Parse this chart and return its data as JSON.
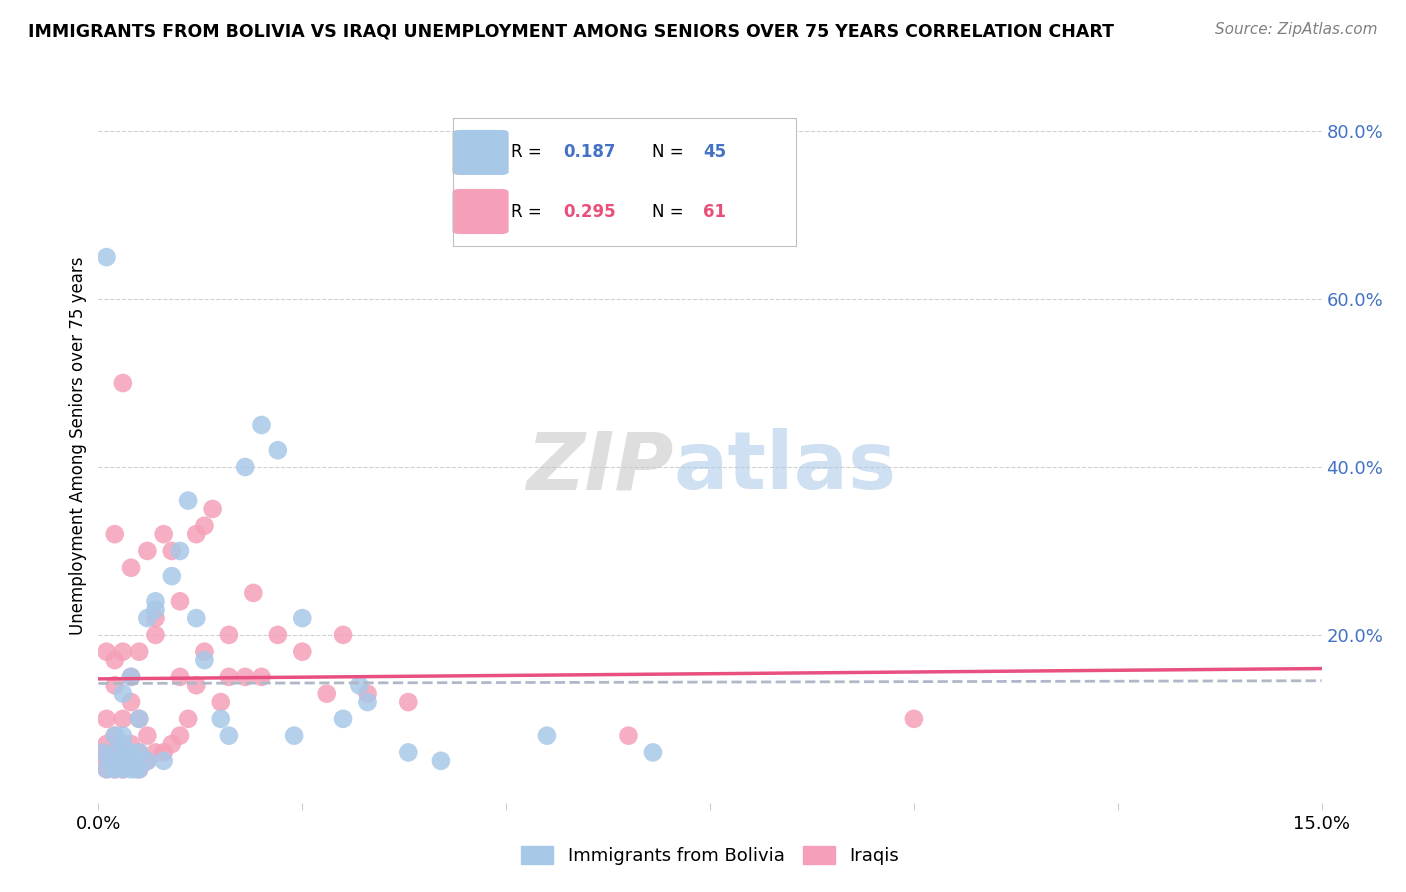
{
  "title": "IMMIGRANTS FROM BOLIVIA VS IRAQI UNEMPLOYMENT AMONG SENIORS OVER 75 YEARS CORRELATION CHART",
  "source": "Source: ZipAtlas.com",
  "ylabel": "Unemployment Among Seniors over 75 years",
  "xmin": 0.0,
  "xmax": 0.15,
  "ymin": 0.0,
  "ymax": 0.85,
  "bolivia_r": 0.187,
  "bolivia_n": 45,
  "iraq_r": 0.295,
  "iraq_n": 61,
  "bolivia_color": "#a8c8e8",
  "iraq_color": "#f5a0b8",
  "bolivia_line_color": "#5090d0",
  "iraq_line_color": "#e85080",
  "dashed_line_color": "#b0b8c8",
  "grid_color": "#d0d0d0",
  "bolivia_scatter_x": [
    0.0005,
    0.001,
    0.001,
    0.0015,
    0.002,
    0.002,
    0.002,
    0.0025,
    0.003,
    0.003,
    0.003,
    0.003,
    0.003,
    0.004,
    0.004,
    0.004,
    0.004,
    0.0045,
    0.005,
    0.005,
    0.005,
    0.006,
    0.006,
    0.007,
    0.007,
    0.008,
    0.009,
    0.01,
    0.011,
    0.012,
    0.013,
    0.015,
    0.016,
    0.018,
    0.02,
    0.022,
    0.024,
    0.025,
    0.03,
    0.032,
    0.033,
    0.038,
    0.042,
    0.055,
    0.068
  ],
  "bolivia_scatter_y": [
    0.06,
    0.04,
    0.65,
    0.05,
    0.04,
    0.06,
    0.08,
    0.05,
    0.04,
    0.05,
    0.07,
    0.08,
    0.13,
    0.04,
    0.05,
    0.06,
    0.15,
    0.04,
    0.04,
    0.06,
    0.1,
    0.05,
    0.22,
    0.24,
    0.23,
    0.05,
    0.27,
    0.3,
    0.36,
    0.22,
    0.17,
    0.1,
    0.08,
    0.4,
    0.45,
    0.42,
    0.08,
    0.22,
    0.1,
    0.14,
    0.12,
    0.06,
    0.05,
    0.08,
    0.06
  ],
  "iraq_scatter_x": [
    0.0003,
    0.0005,
    0.001,
    0.001,
    0.001,
    0.001,
    0.0015,
    0.002,
    0.002,
    0.002,
    0.002,
    0.002,
    0.002,
    0.003,
    0.003,
    0.003,
    0.003,
    0.003,
    0.003,
    0.004,
    0.004,
    0.004,
    0.004,
    0.004,
    0.005,
    0.005,
    0.005,
    0.005,
    0.006,
    0.006,
    0.006,
    0.007,
    0.007,
    0.007,
    0.008,
    0.008,
    0.009,
    0.009,
    0.01,
    0.01,
    0.01,
    0.011,
    0.012,
    0.012,
    0.013,
    0.013,
    0.014,
    0.015,
    0.016,
    0.016,
    0.018,
    0.019,
    0.02,
    0.022,
    0.025,
    0.028,
    0.03,
    0.033,
    0.038,
    0.1,
    0.065
  ],
  "iraq_scatter_y": [
    0.05,
    0.06,
    0.04,
    0.07,
    0.1,
    0.18,
    0.05,
    0.04,
    0.06,
    0.08,
    0.14,
    0.17,
    0.32,
    0.04,
    0.05,
    0.07,
    0.1,
    0.18,
    0.5,
    0.05,
    0.07,
    0.12,
    0.15,
    0.28,
    0.04,
    0.06,
    0.1,
    0.18,
    0.05,
    0.08,
    0.3,
    0.06,
    0.2,
    0.22,
    0.06,
    0.32,
    0.07,
    0.3,
    0.08,
    0.15,
    0.24,
    0.1,
    0.14,
    0.32,
    0.18,
    0.33,
    0.35,
    0.12,
    0.15,
    0.2,
    0.15,
    0.25,
    0.15,
    0.2,
    0.18,
    0.13,
    0.2,
    0.13,
    0.12,
    0.1,
    0.08
  ],
  "watermark_zip": "ZIP",
  "watermark_atlas": "atlas",
  "legend_entries": [
    "Immigrants from Bolivia",
    "Iraqis"
  ]
}
